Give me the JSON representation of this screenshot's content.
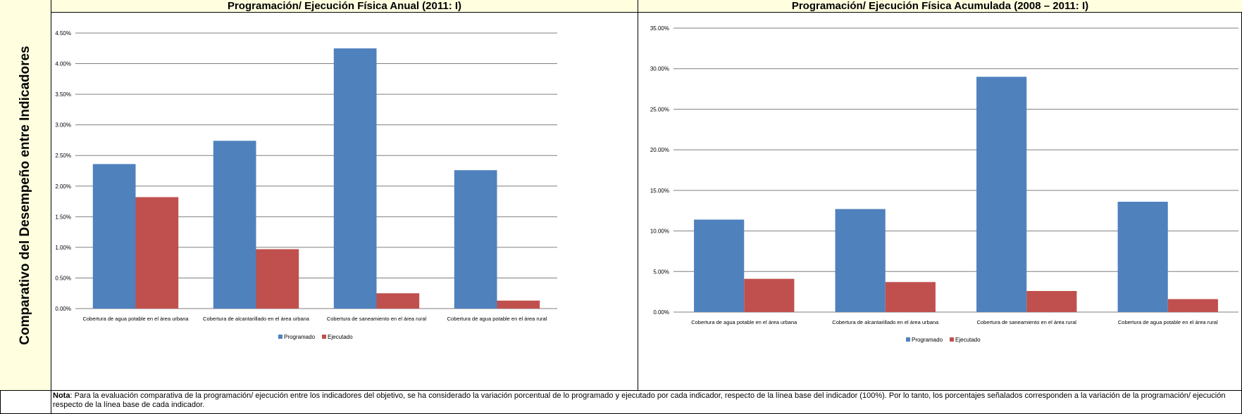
{
  "side_label": "Comparativo del Desempeño entre Indicadores",
  "colors": {
    "programado": "#4f81bd",
    "ejecutado": "#c0504d",
    "header_bg": "#ffffe0",
    "grid": "#7f7f7f"
  },
  "chart_data": [
    {
      "type": "bar",
      "title": "Programación/ Ejecución Física Anual (2011: I)",
      "categories": [
        "Cobertura de agua potable en el área urbana",
        "Cobertura de alcantarillado  en el área urbana",
        "Cobertura de saneamiento en el área rural",
        "Cobertura de agua potable en el área rural"
      ],
      "series": [
        {
          "name": "Programado",
          "values": [
            2.36,
            2.74,
            4.25,
            2.26
          ]
        },
        {
          "name": "Ejecutado",
          "values": [
            1.82,
            0.97,
            0.25,
            0.13
          ]
        }
      ],
      "yticks": [
        "0.00%",
        "0.50%",
        "1.00%",
        "1.50%",
        "2.00%",
        "2.50%",
        "3.00%",
        "3.50%",
        "4.00%",
        "4.50%"
      ],
      "ylim": [
        0,
        4.5
      ],
      "ystep": 0.5,
      "grid": true,
      "legend": "bottom"
    },
    {
      "type": "bar",
      "title": "Programación/ Ejecución Física Acumulada (2008 – 2011: I)",
      "categories": [
        "Cobertura de agua potable en el área urbana",
        "Cobertura de alcantarillado  en el área urbana",
        "Cobertura de saneamiento en el área rural",
        "Cobertura de agua potable en el área rural"
      ],
      "series": [
        {
          "name": "Programado",
          "values": [
            11.4,
            12.7,
            29.0,
            13.6
          ]
        },
        {
          "name": "Ejecutado",
          "values": [
            4.1,
            3.7,
            2.6,
            1.6
          ]
        }
      ],
      "yticks": [
        "0.00%",
        "5.00%",
        "10.00%",
        "15.00%",
        "20.00%",
        "25.00%",
        "30.00%",
        "35.00%"
      ],
      "ylim": [
        0,
        35
      ],
      "ystep": 5,
      "grid": true,
      "legend": "bottom"
    }
  ],
  "note": {
    "label": "Nota",
    "text": ": Para la evaluación comparativa de la programación/ ejecución entre los indicadores del objetivo, se ha considerado la variación porcentual de lo programado y ejecutado por cada indicador, respecto de la línea base del indicador (100%). Por lo tanto, los porcentajes señalados corresponden a la variación de la programación/ ejecución respecto de la línea base de cada indicador."
  }
}
